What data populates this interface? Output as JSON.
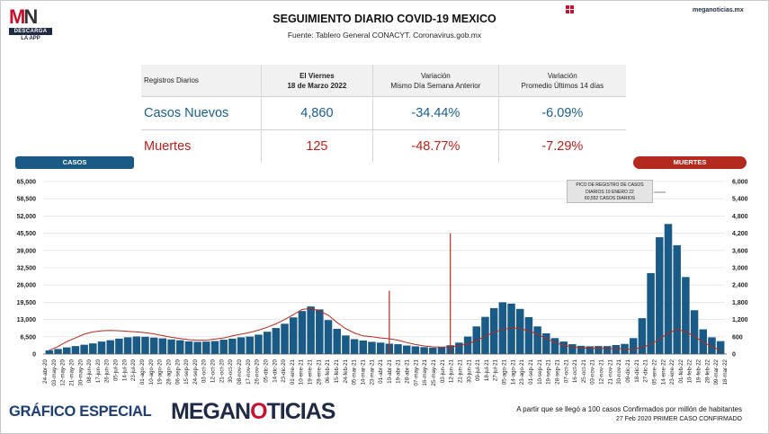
{
  "logo": {
    "mark_left": "M",
    "mark_right": "N",
    "sub1": "DESCARGA",
    "sub2": "LA APP"
  },
  "header": {
    "title": "SEGUIMIENTO DIARIO COVID-19 MEXICO",
    "source": "Fuente: Tablero General CONACYT. Coronavirus.gob.mx",
    "site": "meganoticias.mx"
  },
  "table": {
    "headers": [
      "Registros Diarios",
      "El Viernes\n18 de Marzo 2022",
      "Variación\nMismo Día Semana Anterior",
      "Variación\nPromedio Últimos 14 días"
    ],
    "rows": [
      {
        "label": "Casos Nuevos",
        "value": "4,860",
        "var_week": "-34.44%",
        "var_14": "-6.09%"
      },
      {
        "label": "Muertes",
        "value": "125",
        "var_week": "-48.77%",
        "var_14": "-7.29%"
      }
    ]
  },
  "legend": {
    "left": "CASOS",
    "right": "MUERTES"
  },
  "annotation": [
    "PICO DE REGISTRO DE CASOS",
    "DIARIOS 19 ENERO 22",
    "60,552 CASOS DIARIOS"
  ],
  "footer": {
    "left": "GRÁFICO ESPECIAL",
    "brand_a": "MEGAN",
    "brand_o": "O",
    "brand_b": "TICIAS",
    "note1": "A partir que se llegó a 100 casos Confirmados por millón de habitantes",
    "note2": "27 Feb 2020 PRIMER CASO CONFIRMADO"
  },
  "colors": {
    "cases": "#1a5a86",
    "deaths": "#b42a1e"
  },
  "chart_data": {
    "type": "bar",
    "title": "",
    "y_left": {
      "label": "CASOS",
      "ylim": [
        0,
        65000
      ],
      "ticks": [
        "0",
        "6,500",
        "13,000",
        "19,500",
        "26,000",
        "32,500",
        "39,000",
        "45,500",
        "52,000",
        "58,500",
        "65,000"
      ]
    },
    "y_right": {
      "label": "MUERTES",
      "ylim": [
        0,
        6000
      ],
      "ticks": [
        "0",
        "600",
        "1,200",
        "1,800",
        "2,400",
        "3,000",
        "3,600",
        "4,200",
        "4,800",
        "5,400",
        "6,000"
      ]
    },
    "x_tick_labels": [
      "24-abr-20",
      "03-may-20",
      "12-may-20",
      "21-may-20",
      "30-may-20",
      "08-jun-20",
      "17-jun-20",
      "26-jun-20",
      "05-jul-20",
      "14-jul-20",
      "23-jul-20",
      "01-ago-20",
      "10-ago-20",
      "19-ago-20",
      "28-ago-20",
      "06-sep-20",
      "15-sep-20",
      "24-sep-20",
      "03-oct-20",
      "12-oct-20",
      "21-oct-20",
      "30-oct-20",
      "08-nov-20",
      "17-nov-20",
      "26-nov-20",
      "05-dic-20",
      "14-dic-20",
      "23-dic-20",
      "01-ene-21",
      "10-ene-21",
      "19-ene-21",
      "28-ene-21",
      "06-feb-21",
      "15-feb-21",
      "24-feb-21",
      "05-mar-21",
      "14-mar-21",
      "23-mar-21",
      "01-abr-21",
      "10-abr-21",
      "19-abr-21",
      "28-abr-21",
      "07-may-21",
      "16-may-21",
      "25-may-21",
      "03-jun-21",
      "12-jun-21",
      "21-jun-21",
      "30-jun-21",
      "09-jul-21",
      "18-jul-21",
      "27-jul-21",
      "05-ago-21",
      "14-ago-21",
      "23-ago-21",
      "01-sep-21",
      "10-sep-21",
      "19-sep-21",
      "28-sep-21",
      "07-oct-21",
      "16-oct-21",
      "25-oct-21",
      "03-nov-21",
      "12-nov-21",
      "21-nov-21",
      "30-nov-21",
      "09-dic-21",
      "18-dic-21",
      "27-dic-21",
      "05-ene-22",
      "14-ene-22",
      "23-ene-22",
      "01-feb-22",
      "10-feb-22",
      "19-feb-22",
      "28-feb-22",
      "09-mar-22",
      "18-mar-22"
    ],
    "series": [
      {
        "name": "CASOS",
        "kind": "bar",
        "axis": "left",
        "sampled_every_days": 9,
        "values": [
          1400,
          1900,
          2500,
          3000,
          3500,
          4000,
          4700,
          5200,
          5800,
          6300,
          6600,
          6500,
          6200,
          5900,
          5500,
          5200,
          4800,
          4600,
          4700,
          4900,
          5400,
          5800,
          6300,
          6600,
          7300,
          8400,
          9800,
          11400,
          13800,
          16200,
          17900,
          16800,
          12800,
          9500,
          7000,
          5600,
          5100,
          4600,
          4300,
          3900,
          3700,
          3200,
          2900,
          2600,
          2400,
          2500,
          3300,
          4300,
          6600,
          10400,
          14000,
          17300,
          19500,
          19000,
          17000,
          13900,
          10400,
          7800,
          6000,
          4700,
          3700,
          3100,
          2900,
          3000,
          3000,
          3400,
          3800,
          6000,
          13500,
          30500,
          44000,
          49000,
          41000,
          29000,
          16500,
          9300,
          6300,
          4860
        ]
      },
      {
        "name": "MUERTES",
        "kind": "line",
        "axis": "right",
        "sampled_every_days": 9,
        "values": [
          130,
          260,
          430,
          560,
          690,
          770,
          810,
          820,
          810,
          790,
          770,
          740,
          700,
          640,
          580,
          540,
          500,
          480,
          480,
          520,
          560,
          630,
          690,
          750,
          830,
          930,
          1050,
          1200,
          1370,
          1550,
          1580,
          1500,
          1350,
          1100,
          880,
          730,
          630,
          600,
          560,
          530,
          480,
          400,
          330,
          280,
          250,
          240,
          250,
          290,
          360,
          470,
          620,
          760,
          850,
          910,
          880,
          810,
          690,
          540,
          400,
          300,
          250,
          210,
          200,
          200,
          190,
          190,
          180,
          170,
          230,
          340,
          520,
          730,
          850,
          780,
          620,
          410,
          260,
          125
        ],
        "spikes": [
          {
            "date": "05-abr-21",
            "value": 2200
          },
          {
            "date": "02-jun-21",
            "value": 4200
          }
        ]
      }
    ],
    "peak_annotation": {
      "date": "19-ene-22",
      "value": 60552
    }
  }
}
